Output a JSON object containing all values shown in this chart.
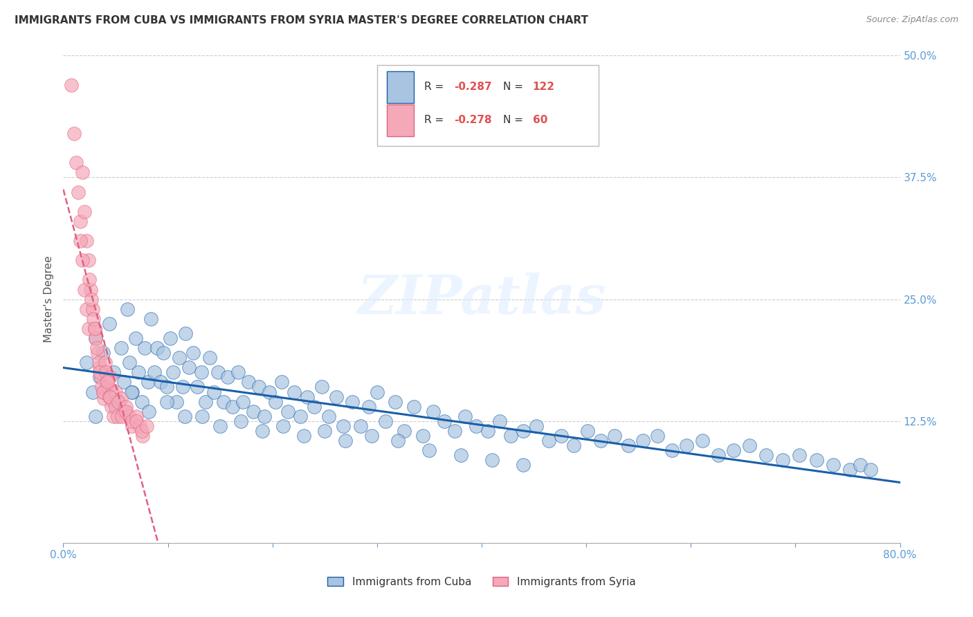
{
  "title": "IMMIGRANTS FROM CUBA VS IMMIGRANTS FROM SYRIA MASTER'S DEGREE CORRELATION CHART",
  "source": "Source: ZipAtlas.com",
  "ylabel": "Master's Degree",
  "xlim": [
    0.0,
    0.8
  ],
  "ylim": [
    0.0,
    0.5
  ],
  "xticks": [
    0.0,
    0.1,
    0.2,
    0.3,
    0.4,
    0.5,
    0.6,
    0.7,
    0.8
  ],
  "ytick_positions": [
    0.0,
    0.125,
    0.25,
    0.375,
    0.5
  ],
  "yticklabels_right": [
    "",
    "12.5%",
    "25.0%",
    "37.5%",
    "50.0%"
  ],
  "cuba_R": -0.287,
  "cuba_N": 122,
  "syria_R": -0.278,
  "syria_N": 60,
  "legend_labels": [
    "Immigrants from Cuba",
    "Immigrants from Syria"
  ],
  "cuba_color": "#a8c4e0",
  "syria_color": "#f4a8b8",
  "cuba_line_color": "#1a5fa8",
  "syria_line_color": "#e06080",
  "background_color": "#ffffff",
  "grid_color": "#cccccc",
  "title_color": "#333333",
  "tick_color_right": "#5b9bd5",
  "r_value_color": "#e05050",
  "title_fontsize": 11,
  "cuba_scatter_x": [
    0.022,
    0.028,
    0.031,
    0.035,
    0.038,
    0.041,
    0.044,
    0.048,
    0.052,
    0.055,
    0.058,
    0.061,
    0.063,
    0.066,
    0.069,
    0.072,
    0.075,
    0.078,
    0.081,
    0.084,
    0.087,
    0.09,
    0.093,
    0.096,
    0.099,
    0.102,
    0.105,
    0.108,
    0.111,
    0.114,
    0.117,
    0.12,
    0.124,
    0.128,
    0.132,
    0.136,
    0.14,
    0.144,
    0.148,
    0.153,
    0.157,
    0.162,
    0.167,
    0.172,
    0.177,
    0.182,
    0.187,
    0.192,
    0.197,
    0.203,
    0.209,
    0.215,
    0.221,
    0.227,
    0.233,
    0.24,
    0.247,
    0.254,
    0.261,
    0.268,
    0.276,
    0.284,
    0.292,
    0.3,
    0.308,
    0.317,
    0.326,
    0.335,
    0.344,
    0.354,
    0.364,
    0.374,
    0.384,
    0.395,
    0.406,
    0.417,
    0.428,
    0.44,
    0.452,
    0.464,
    0.476,
    0.488,
    0.501,
    0.514,
    0.527,
    0.54,
    0.554,
    0.568,
    0.582,
    0.596,
    0.611,
    0.626,
    0.641,
    0.656,
    0.672,
    0.688,
    0.704,
    0.72,
    0.736,
    0.752,
    0.762,
    0.772,
    0.031,
    0.048,
    0.065,
    0.082,
    0.099,
    0.116,
    0.133,
    0.15,
    0.17,
    0.19,
    0.21,
    0.23,
    0.25,
    0.27,
    0.295,
    0.32,
    0.35,
    0.38,
    0.41,
    0.44
  ],
  "cuba_scatter_y": [
    0.185,
    0.155,
    0.21,
    0.17,
    0.195,
    0.16,
    0.225,
    0.175,
    0.145,
    0.2,
    0.165,
    0.24,
    0.185,
    0.155,
    0.21,
    0.175,
    0.145,
    0.2,
    0.165,
    0.23,
    0.175,
    0.2,
    0.165,
    0.195,
    0.16,
    0.21,
    0.175,
    0.145,
    0.19,
    0.16,
    0.215,
    0.18,
    0.195,
    0.16,
    0.175,
    0.145,
    0.19,
    0.155,
    0.175,
    0.145,
    0.17,
    0.14,
    0.175,
    0.145,
    0.165,
    0.135,
    0.16,
    0.13,
    0.155,
    0.145,
    0.165,
    0.135,
    0.155,
    0.13,
    0.15,
    0.14,
    0.16,
    0.13,
    0.15,
    0.12,
    0.145,
    0.12,
    0.14,
    0.155,
    0.125,
    0.145,
    0.115,
    0.14,
    0.11,
    0.135,
    0.125,
    0.115,
    0.13,
    0.12,
    0.115,
    0.125,
    0.11,
    0.115,
    0.12,
    0.105,
    0.11,
    0.1,
    0.115,
    0.105,
    0.11,
    0.1,
    0.105,
    0.11,
    0.095,
    0.1,
    0.105,
    0.09,
    0.095,
    0.1,
    0.09,
    0.085,
    0.09,
    0.085,
    0.08,
    0.075,
    0.08,
    0.075,
    0.13,
    0.145,
    0.155,
    0.135,
    0.145,
    0.13,
    0.13,
    0.12,
    0.125,
    0.115,
    0.12,
    0.11,
    0.115,
    0.105,
    0.11,
    0.105,
    0.095,
    0.09,
    0.085,
    0.08
  ],
  "syria_scatter_x": [
    0.008,
    0.01,
    0.012,
    0.014,
    0.016,
    0.018,
    0.02,
    0.022,
    0.024,
    0.026,
    0.018,
    0.02,
    0.022,
    0.024,
    0.016,
    0.028,
    0.03,
    0.025,
    0.027,
    0.029,
    0.031,
    0.033,
    0.035,
    0.03,
    0.032,
    0.034,
    0.036,
    0.038,
    0.04,
    0.035,
    0.037,
    0.039,
    0.041,
    0.043,
    0.038,
    0.045,
    0.047,
    0.042,
    0.044,
    0.046,
    0.048,
    0.05,
    0.045,
    0.05,
    0.052,
    0.055,
    0.058,
    0.053,
    0.056,
    0.06,
    0.063,
    0.066,
    0.06,
    0.065,
    0.07,
    0.073,
    0.076,
    0.07,
    0.075,
    0.08
  ],
  "syria_scatter_y": [
    0.47,
    0.42,
    0.39,
    0.36,
    0.33,
    0.38,
    0.34,
    0.31,
    0.29,
    0.26,
    0.29,
    0.26,
    0.24,
    0.22,
    0.31,
    0.24,
    0.22,
    0.27,
    0.25,
    0.23,
    0.21,
    0.195,
    0.18,
    0.22,
    0.2,
    0.185,
    0.17,
    0.155,
    0.185,
    0.175,
    0.16,
    0.148,
    0.175,
    0.16,
    0.155,
    0.17,
    0.155,
    0.165,
    0.15,
    0.14,
    0.13,
    0.155,
    0.15,
    0.14,
    0.13,
    0.148,
    0.135,
    0.145,
    0.13,
    0.14,
    0.13,
    0.12,
    0.135,
    0.125,
    0.13,
    0.12,
    0.11,
    0.125,
    0.115,
    0.12
  ]
}
